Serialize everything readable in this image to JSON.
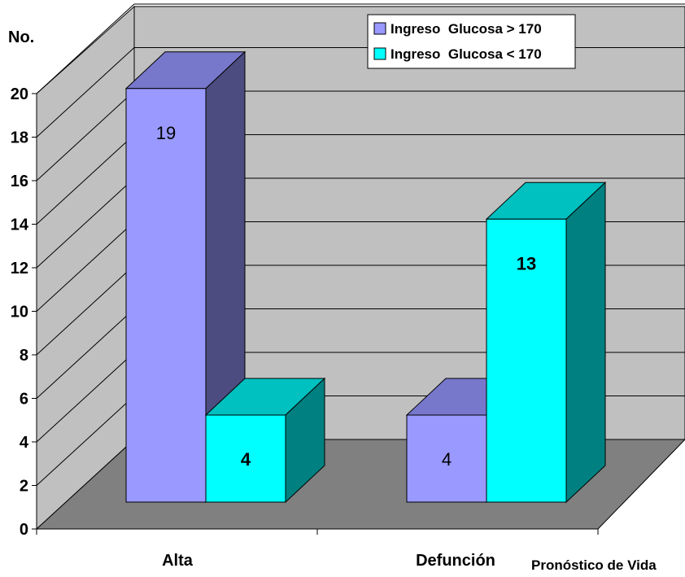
{
  "chart_data": {
    "type": "bar",
    "style": "3d-clustered-column",
    "ylabel": "No.",
    "xlabel": "Pronóstico de Vida",
    "categories": [
      "Alta",
      "Defunción"
    ],
    "ylim": [
      0,
      20
    ],
    "yticks": [
      "0",
      "2",
      "4",
      "6",
      "8",
      "10",
      "12",
      "14",
      "16",
      "18",
      "20"
    ],
    "grid": true,
    "legend_position": "top-right",
    "series": [
      {
        "name": "Ingreso  Glucosa > 170",
        "values": [
          19,
          4
        ],
        "labels": [
          "19",
          "4"
        ],
        "label_bold": false,
        "colors": {
          "front": "#9999ff",
          "top": "#7777cc",
          "side": "#4c4c80"
        }
      },
      {
        "name": "Ingreso  Glucosa < 170",
        "values": [
          4,
          13
        ],
        "labels": [
          "4",
          "13"
        ],
        "label_bold": true,
        "colors": {
          "front": "#00ffff",
          "top": "#00c0c0",
          "side": "#008080"
        }
      }
    ],
    "wall_color": "#c0c0c0",
    "floor_color": "#808080"
  }
}
